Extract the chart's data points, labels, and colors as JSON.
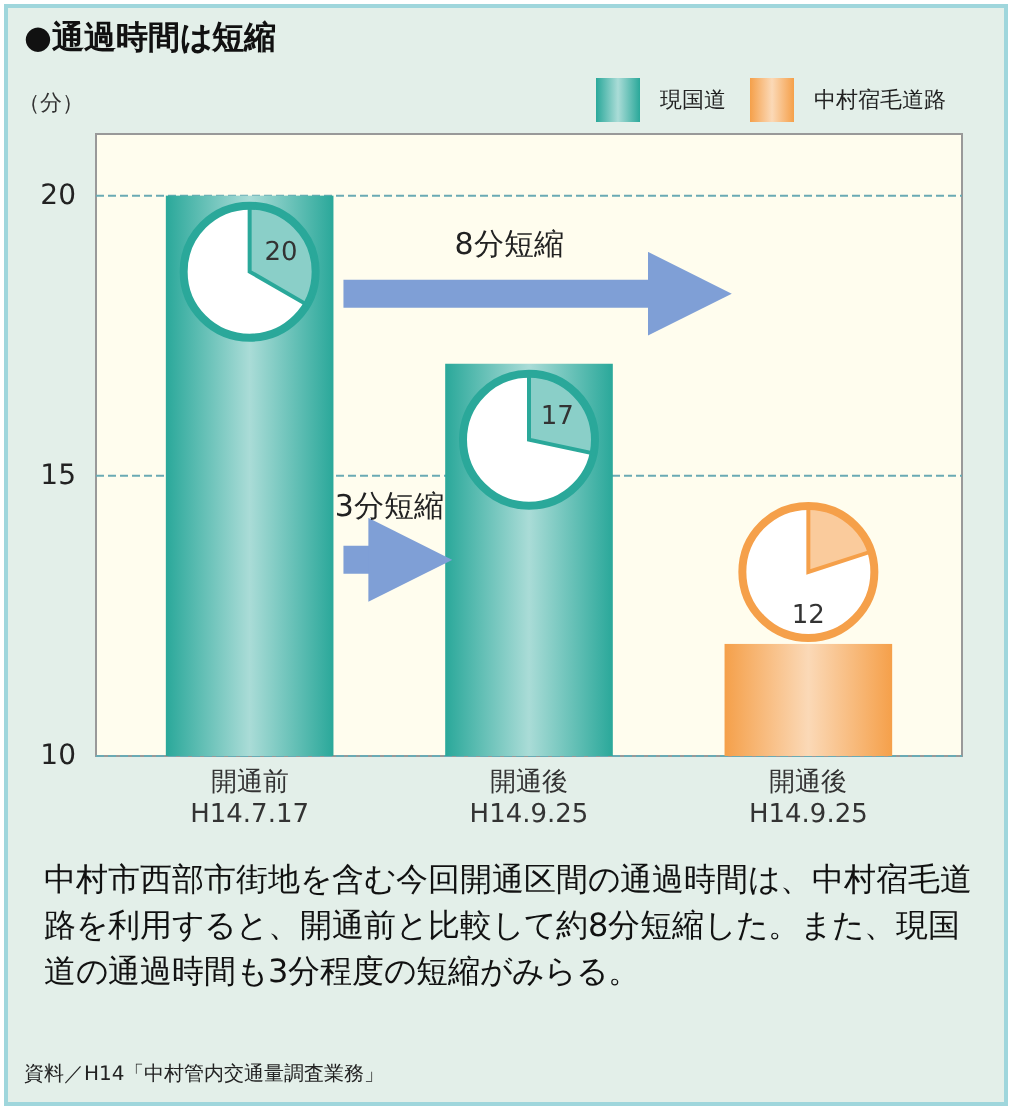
{
  "chart_data": {
    "type": "bar",
    "title": "●通過時間は短縮",
    "ylabel": "（分）",
    "categories": [
      "開通前\nH14.7.17",
      "開通後\nH14.9.25",
      "開通後\nH14.9.25"
    ],
    "series": [
      {
        "name": "現国道",
        "color": "#2aa89a",
        "values": [
          20,
          17,
          null
        ]
      },
      {
        "name": "中村宿毛道路",
        "color": "#f5a04a",
        "values": [
          null,
          null,
          12
        ]
      }
    ],
    "ylim": [
      10,
      21.1
    ],
    "yticks": [
      10,
      15,
      20
    ],
    "grid": "y",
    "legend": "top right",
    "data_labels": true,
    "annotations": [
      "8分短縮",
      "3分短縮",
      "中村市西部市街地を含む今回開通区間の通過時間は、中村宿毛道路を利用すると、開通前と比較して約8分短縮した。また、現国道の通過時間も3分程度の短縮がみらる。",
      "資料／H14「中村管内交通量調査業務」"
    ]
  }
}
